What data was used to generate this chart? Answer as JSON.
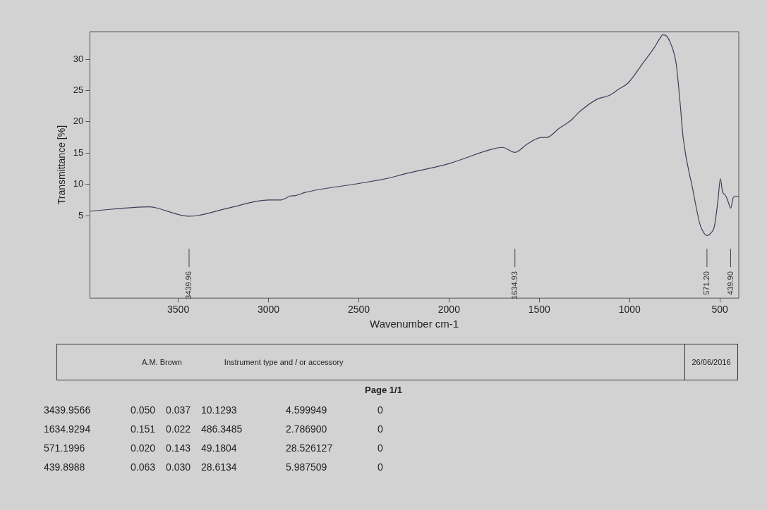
{
  "chart_data": {
    "type": "line",
    "xlabel": "Wavenumber cm-1",
    "ylabel": "Transmittance [%]",
    "xlim": [
      3990,
      395
    ],
    "ylim": [
      -8.2,
      34.4
    ],
    "xticks": [
      3500,
      3000,
      2500,
      2000,
      1500,
      1000,
      500
    ],
    "yticks": [
      5,
      10,
      15,
      20,
      25,
      30
    ],
    "grid": false,
    "legend": false,
    "marker": "none",
    "line_style": "solid",
    "series": [
      {
        "color": "#3a3f5a",
        "x": [
          3988,
          3659,
          3633,
          3439.96,
          3394,
          3222,
          2996,
          2930,
          2910,
          2883,
          2850,
          2797,
          2506,
          2333,
          2254,
          2002,
          1763,
          1704,
          1634.93,
          1564,
          1485,
          1458,
          1392,
          1326,
          1273,
          1180,
          1113,
          1061,
          1008,
          928,
          862,
          835,
          815,
          795,
          775,
          742,
          720,
          703,
          650,
          610,
          590,
          571.2,
          550,
          530,
          510,
          497,
          485,
          470,
          455,
          439.9,
          425,
          411,
          395
        ],
        "values": [
          5.7,
          6.4,
          6.3,
          4.9,
          5.0,
          6.2,
          7.5,
          7.5,
          7.7,
          8.1,
          8.2,
          8.7,
          10.1,
          11.0,
          11.6,
          13.3,
          15.6,
          15.9,
          15.1,
          16.5,
          17.5,
          17.5,
          18.9,
          20.2,
          21.7,
          23.6,
          24.2,
          25.2,
          26.2,
          29.3,
          31.9,
          33.2,
          33.9,
          33.7,
          32.7,
          29.3,
          23.0,
          17.4,
          9.2,
          3.6,
          2.3,
          1.8,
          2.2,
          3.3,
          7.5,
          10.9,
          8.8,
          8.3,
          7.3,
          6.2,
          7.9,
          8.1,
          8.1
        ]
      }
    ],
    "ref_lines": [
      {
        "axis": "x",
        "value": 3439.96,
        "label": "3439.96"
      },
      {
        "axis": "x",
        "value": 1634.93,
        "label": "1634.93"
      },
      {
        "axis": "x",
        "value": 571.2,
        "label": "571.20"
      },
      {
        "axis": "x",
        "value": 439.9,
        "label": "439.90"
      }
    ],
    "annotations": [
      "A.M. Brown",
      "Instrument type and / or accessory",
      "26/06/2016",
      "Page 1/1",
      "3439.9566 0.050 0.037 10.1293 4.599949 0",
      "1634.9294 0.151 0.022 486.3485 2.786900 0",
      "571.1996 0.020 0.143 49.1804 28.526127 0",
      "439.8988 0.063 0.030 28.6134 5.987509 0"
    ]
  }
}
